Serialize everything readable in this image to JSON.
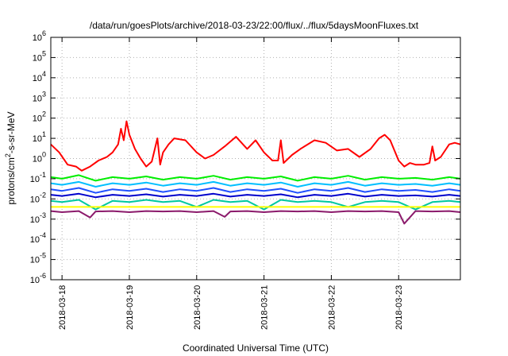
{
  "chart_data": {
    "type": "line",
    "title": "/data/run/goesPlots/archive/2018-03-23/22:00/flux/../flux/5daysMoonFluxes.txt",
    "xlabel": "Coordinated Universal Time (UTC)",
    "ylabel": "protons/cm2-s-sr-MeV",
    "ylabel_parts": [
      "protons/cm",
      "2",
      "-s-sr-MeV"
    ],
    "yscale": "log",
    "ylim": [
      1e-06,
      1000000.0
    ],
    "xlim": [
      "2018-03-17T20:00",
      "2018-03-23T22:00"
    ],
    "xticks": [
      "2018-03-18",
      "2018-03-19",
      "2018-03-20",
      "2018-03-21",
      "2018-03-22",
      "2018-03-23"
    ],
    "yticks": [
      {
        "base": "10",
        "exp": "-6"
      },
      {
        "base": "10",
        "exp": "-5"
      },
      {
        "base": "10",
        "exp": "-4"
      },
      {
        "base": "10",
        "exp": "-3"
      },
      {
        "base": "10",
        "exp": "-2"
      },
      {
        "base": "10",
        "exp": "-1"
      },
      {
        "base": "10",
        "exp": "0"
      },
      {
        "base": "10",
        "exp": "1"
      },
      {
        "base": "10",
        "exp": "2"
      },
      {
        "base": "10",
        "exp": "3"
      },
      {
        "base": "10",
        "exp": "4"
      },
      {
        "base": "10",
        "exp": "5"
      },
      {
        "base": "10",
        "exp": "6"
      }
    ],
    "grid": true,
    "series": [
      {
        "color": "#ff0000",
        "x": [
          "2018-03-17T20:00",
          "2018-03-17T23:00",
          "2018-03-18T02:00",
          "2018-03-18T05:00",
          "2018-03-18T07:00",
          "2018-03-18T10:00",
          "2018-03-18T13:00",
          "2018-03-18T16:00",
          "2018-03-18T18:00",
          "2018-03-18T20:00",
          "2018-03-18T21:00",
          "2018-03-18T22:00",
          "2018-03-18T23:00",
          "2018-03-19T00:00",
          "2018-03-19T02:00",
          "2018-03-19T04:00",
          "2018-03-19T06:00",
          "2018-03-19T08:00",
          "2018-03-19T10:00",
          "2018-03-19T11:00",
          "2018-03-19T12:00",
          "2018-03-19T14:00",
          "2018-03-19T16:00",
          "2018-03-19T20:00",
          "2018-03-20T00:00",
          "2018-03-20T03:00",
          "2018-03-20T06:00",
          "2018-03-20T10:00",
          "2018-03-20T14:00",
          "2018-03-20T18:00",
          "2018-03-20T21:00",
          "2018-03-21T00:00",
          "2018-03-21T03:00",
          "2018-03-21T05:00",
          "2018-03-21T06:00",
          "2018-03-21T07:00",
          "2018-03-21T10:00",
          "2018-03-21T13:00",
          "2018-03-21T18:00",
          "2018-03-21T22:00",
          "2018-03-22T02:00",
          "2018-03-22T06:00",
          "2018-03-22T10:00",
          "2018-03-22T14:00",
          "2018-03-22T17:00",
          "2018-03-22T19:00",
          "2018-03-22T21:00",
          "2018-03-23T00:00",
          "2018-03-23T02:00",
          "2018-03-23T04:00",
          "2018-03-23T06:00",
          "2018-03-23T09:00",
          "2018-03-23T11:00",
          "2018-03-23T12:00",
          "2018-03-23T13:00",
          "2018-03-23T15:00",
          "2018-03-23T18:00",
          "2018-03-23T20:00",
          "2018-03-23T22:00"
        ],
        "values": [
          5,
          2,
          0.5,
          0.4,
          0.25,
          0.4,
          0.8,
          1.2,
          2,
          5,
          30,
          8,
          70,
          15,
          3,
          1,
          0.4,
          0.7,
          10,
          0.5,
          2,
          5,
          10,
          8,
          2,
          1,
          1.5,
          4,
          12,
          3,
          8,
          2,
          0.8,
          0.8,
          8,
          0.6,
          1.5,
          3,
          8,
          6,
          2.5,
          3,
          1.2,
          3,
          10,
          15,
          8,
          0.8,
          0.4,
          0.6,
          0.5,
          0.5,
          0.6,
          4,
          0.8,
          1.2,
          5,
          6,
          5
        ]
      },
      {
        "color": "#00ee00",
        "x": [
          "2018-03-17T20:00",
          "2018-03-18T00:00",
          "2018-03-18T06:00",
          "2018-03-18T12:00",
          "2018-03-18T18:00",
          "2018-03-19T00:00",
          "2018-03-19T06:00",
          "2018-03-19T12:00",
          "2018-03-19T18:00",
          "2018-03-20T00:00",
          "2018-03-20T06:00",
          "2018-03-20T12:00",
          "2018-03-20T18:00",
          "2018-03-21T00:00",
          "2018-03-21T06:00",
          "2018-03-21T12:00",
          "2018-03-21T18:00",
          "2018-03-22T00:00",
          "2018-03-22T06:00",
          "2018-03-22T12:00",
          "2018-03-22T18:00",
          "2018-03-23T00:00",
          "2018-03-23T06:00",
          "2018-03-23T12:00",
          "2018-03-23T18:00",
          "2018-03-23T22:00"
        ],
        "values": [
          0.12,
          0.1,
          0.15,
          0.08,
          0.12,
          0.1,
          0.13,
          0.09,
          0.12,
          0.1,
          0.14,
          0.09,
          0.12,
          0.1,
          0.13,
          0.08,
          0.12,
          0.1,
          0.14,
          0.09,
          0.12,
          0.1,
          0.11,
          0.09,
          0.12,
          0.1
        ]
      },
      {
        "color": "#00bfff",
        "x": [
          "2018-03-17T20:00",
          "2018-03-18T00:00",
          "2018-03-18T06:00",
          "2018-03-18T12:00",
          "2018-03-18T18:00",
          "2018-03-19T00:00",
          "2018-03-19T06:00",
          "2018-03-19T12:00",
          "2018-03-19T18:00",
          "2018-03-20T00:00",
          "2018-03-20T06:00",
          "2018-03-20T12:00",
          "2018-03-20T18:00",
          "2018-03-21T00:00",
          "2018-03-21T06:00",
          "2018-03-21T12:00",
          "2018-03-21T18:00",
          "2018-03-22T00:00",
          "2018-03-22T06:00",
          "2018-03-22T12:00",
          "2018-03-22T18:00",
          "2018-03-23T00:00",
          "2018-03-23T06:00",
          "2018-03-23T12:00",
          "2018-03-23T18:00",
          "2018-03-23T22:00"
        ],
        "values": [
          0.06,
          0.05,
          0.07,
          0.04,
          0.06,
          0.05,
          0.065,
          0.045,
          0.06,
          0.05,
          0.07,
          0.045,
          0.06,
          0.05,
          0.065,
          0.04,
          0.06,
          0.05,
          0.07,
          0.045,
          0.06,
          0.05,
          0.055,
          0.045,
          0.06,
          0.05
        ]
      },
      {
        "color": "#2050ff",
        "x": [
          "2018-03-17T20:00",
          "2018-03-18T00:00",
          "2018-03-18T06:00",
          "2018-03-18T12:00",
          "2018-03-18T18:00",
          "2018-03-19T00:00",
          "2018-03-19T06:00",
          "2018-03-19T12:00",
          "2018-03-19T18:00",
          "2018-03-20T00:00",
          "2018-03-20T06:00",
          "2018-03-20T12:00",
          "2018-03-20T18:00",
          "2018-03-21T00:00",
          "2018-03-21T06:00",
          "2018-03-21T12:00",
          "2018-03-21T18:00",
          "2018-03-22T00:00",
          "2018-03-22T06:00",
          "2018-03-22T12:00",
          "2018-03-22T18:00",
          "2018-03-23T00:00",
          "2018-03-23T06:00",
          "2018-03-23T12:00",
          "2018-03-23T18:00",
          "2018-03-23T22:00"
        ],
        "values": [
          0.03,
          0.025,
          0.035,
          0.02,
          0.03,
          0.025,
          0.032,
          0.022,
          0.03,
          0.025,
          0.035,
          0.022,
          0.03,
          0.025,
          0.032,
          0.02,
          0.03,
          0.025,
          0.035,
          0.022,
          0.03,
          0.025,
          0.028,
          0.022,
          0.03,
          0.025
        ]
      },
      {
        "color": "#0000cc",
        "x": [
          "2018-03-17T20:00",
          "2018-03-18T00:00",
          "2018-03-18T06:00",
          "2018-03-18T12:00",
          "2018-03-18T18:00",
          "2018-03-19T00:00",
          "2018-03-19T06:00",
          "2018-03-19T12:00",
          "2018-03-19T18:00",
          "2018-03-20T00:00",
          "2018-03-20T06:00",
          "2018-03-20T12:00",
          "2018-03-20T18:00",
          "2018-03-21T00:00",
          "2018-03-21T06:00",
          "2018-03-21T12:00",
          "2018-03-21T18:00",
          "2018-03-22T00:00",
          "2018-03-22T06:00",
          "2018-03-22T12:00",
          "2018-03-22T18:00",
          "2018-03-23T00:00",
          "2018-03-23T06:00",
          "2018-03-23T12:00",
          "2018-03-23T18:00",
          "2018-03-23T22:00"
        ],
        "values": [
          0.016,
          0.014,
          0.018,
          0.012,
          0.016,
          0.014,
          0.017,
          0.013,
          0.016,
          0.014,
          0.018,
          0.013,
          0.016,
          0.014,
          0.017,
          0.012,
          0.016,
          0.014,
          0.018,
          0.013,
          0.016,
          0.014,
          0.015,
          0.013,
          0.016,
          0.014
        ]
      },
      {
        "color": "#00c8a0",
        "x": [
          "2018-03-17T20:00",
          "2018-03-18T00:00",
          "2018-03-18T06:00",
          "2018-03-18T12:00",
          "2018-03-18T18:00",
          "2018-03-19T00:00",
          "2018-03-19T06:00",
          "2018-03-19T12:00",
          "2018-03-19T18:00",
          "2018-03-20T00:00",
          "2018-03-20T06:00",
          "2018-03-20T12:00",
          "2018-03-20T18:00",
          "2018-03-21T00:00",
          "2018-03-21T06:00",
          "2018-03-21T12:00",
          "2018-03-21T18:00",
          "2018-03-22T00:00",
          "2018-03-22T06:00",
          "2018-03-22T12:00",
          "2018-03-22T18:00",
          "2018-03-23T00:00",
          "2018-03-23T06:00",
          "2018-03-23T12:00",
          "2018-03-23T18:00",
          "2018-03-23T22:00"
        ],
        "values": [
          0.008,
          0.007,
          0.009,
          0.003,
          0.008,
          0.007,
          0.009,
          0.007,
          0.008,
          0.004,
          0.009,
          0.007,
          0.008,
          0.003,
          0.009,
          0.007,
          0.008,
          0.007,
          0.004,
          0.007,
          0.008,
          0.007,
          0.003,
          0.007,
          0.008,
          0.007
        ]
      },
      {
        "color": "#ffff00",
        "x": [
          "2018-03-17T20:00",
          "2018-03-18T12:00",
          "2018-03-19T12:00",
          "2018-03-20T12:00",
          "2018-03-21T12:00",
          "2018-03-22T12:00",
          "2018-03-23T12:00",
          "2018-03-23T22:00"
        ],
        "values": [
          0.004,
          0.004,
          0.004,
          0.004,
          0.004,
          0.004,
          0.004,
          0.004
        ]
      },
      {
        "color": "#8b1a6b",
        "x": [
          "2018-03-17T20:00",
          "2018-03-18T00:00",
          "2018-03-18T06:00",
          "2018-03-18T10:00",
          "2018-03-18T12:00",
          "2018-03-18T18:00",
          "2018-03-19T00:00",
          "2018-03-19T06:00",
          "2018-03-19T12:00",
          "2018-03-19T18:00",
          "2018-03-20T00:00",
          "2018-03-20T06:00",
          "2018-03-20T10:00",
          "2018-03-20T12:00",
          "2018-03-20T18:00",
          "2018-03-21T00:00",
          "2018-03-21T06:00",
          "2018-03-21T12:00",
          "2018-03-21T18:00",
          "2018-03-22T00:00",
          "2018-03-22T06:00",
          "2018-03-22T12:00",
          "2018-03-22T18:00",
          "2018-03-23T00:00",
          "2018-03-23T02:00",
          "2018-03-23T06:00",
          "2018-03-23T12:00",
          "2018-03-23T18:00",
          "2018-03-23T22:00"
        ],
        "values": [
          0.0025,
          0.0022,
          0.0025,
          0.0012,
          0.0024,
          0.0025,
          0.0022,
          0.0025,
          0.0024,
          0.0025,
          0.0022,
          0.0025,
          0.0013,
          0.0024,
          0.0025,
          0.0022,
          0.0025,
          0.0024,
          0.0025,
          0.0022,
          0.0025,
          0.0024,
          0.0025,
          0.0022,
          0.0006,
          0.0025,
          0.0024,
          0.0025,
          0.0022
        ]
      }
    ]
  }
}
